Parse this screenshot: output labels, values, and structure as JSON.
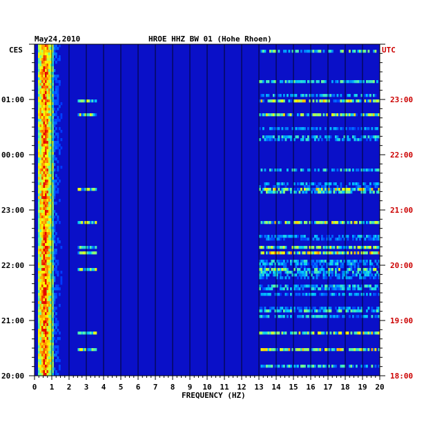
{
  "chart_data": {
    "type": "heatmap",
    "title_date": "May24,2010",
    "title_station": "HROE HHZ BW 01 (Hohe Rhoen)",
    "left_timezone": "CES",
    "right_timezone": "UTC",
    "xlabel": "FREQUENCY (HZ)",
    "xlim": [
      0,
      20
    ],
    "x_ticks": [
      "0",
      "1",
      "2",
      "3",
      "4",
      "5",
      "6",
      "7",
      "8",
      "9",
      "10",
      "11",
      "12",
      "13",
      "14",
      "15",
      "16",
      "17",
      "18",
      "19",
      "20"
    ],
    "left_time_ticks": [
      "01:00",
      "00:00",
      "23:00",
      "22:00",
      "21:00",
      "20:00"
    ],
    "right_time_ticks": [
      "23:00",
      "22:00",
      "21:00",
      "20:00",
      "19:00",
      "18:00"
    ],
    "time_range_utc": [
      "18:00",
      "24:00"
    ],
    "colors": {
      "background": "#0a10c8",
      "low": "#0000a0",
      "mid": "#00c8ff",
      "high": "#ffff00",
      "peak": "#ff0000",
      "grid": "#000000",
      "right_axis_text": "#cc0000"
    },
    "bands": [
      {
        "f_min": 0.2,
        "f_max": 1.0,
        "intensity": "high"
      },
      {
        "f_min": 2.5,
        "f_max": 3.5,
        "intensity": "intermittent"
      },
      {
        "f_min": 13,
        "f_max": 20,
        "intensity": "intermittent-lines"
      }
    ]
  }
}
